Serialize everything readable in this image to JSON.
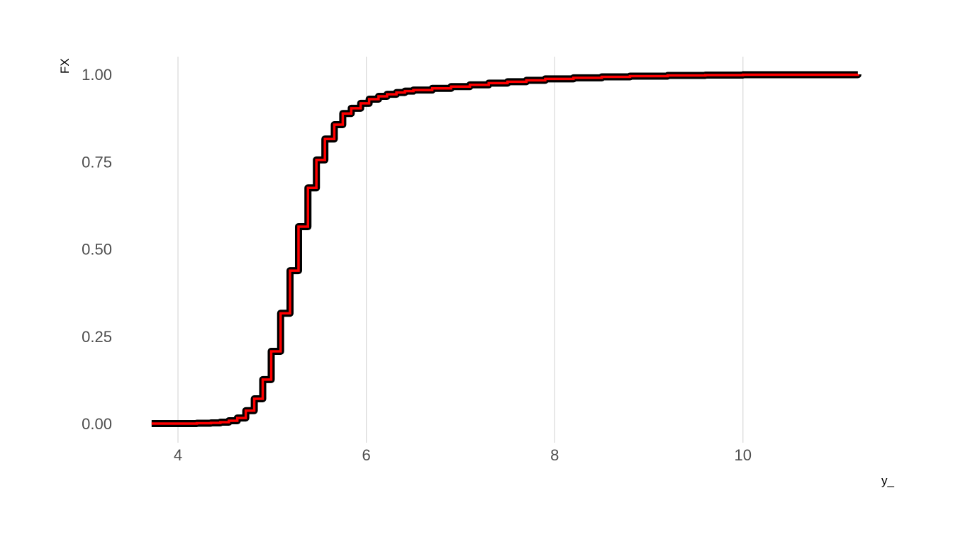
{
  "chart_data": {
    "type": "line",
    "style": "step",
    "title": "",
    "xlabel": "y_",
    "ylabel": "FX",
    "xlim": [
      3.72,
      11.22
    ],
    "ylim": [
      0,
      1
    ],
    "xticks": [
      4,
      6,
      8,
      10
    ],
    "xtick_labels": [
      "4",
      "6",
      "8",
      "10"
    ],
    "yticks": [
      0,
      0.25,
      0.5,
      0.75,
      1
    ],
    "ytick_labels": [
      "0.00",
      "0.25",
      "0.50",
      "0.75",
      "1.00"
    ],
    "grid": "vertical major only",
    "legend": "none",
    "colors": {
      "outer_line": "#000000",
      "inner_line": "#ff0000",
      "grid": "#d9d9d9"
    },
    "x": [
      3.72,
      4.0,
      4.2,
      4.35,
      4.45,
      4.54,
      4.63,
      4.72,
      4.81,
      4.9,
      4.99,
      5.09,
      5.19,
      5.28,
      5.38,
      5.47,
      5.56,
      5.66,
      5.75,
      5.84,
      5.94,
      6.03,
      6.13,
      6.22,
      6.32,
      6.41,
      6.5,
      6.7,
      6.9,
      7.1,
      7.3,
      7.5,
      7.7,
      7.9,
      8.2,
      8.5,
      8.8,
      9.2,
      9.6,
      10.0,
      11.22
    ],
    "y": [
      0,
      0,
      0.001,
      0.002,
      0.004,
      0.008,
      0.016,
      0.037,
      0.071,
      0.126,
      0.207,
      0.316,
      0.438,
      0.564,
      0.675,
      0.755,
      0.815,
      0.856,
      0.888,
      0.903,
      0.917,
      0.929,
      0.937,
      0.943,
      0.948,
      0.952,
      0.955,
      0.96,
      0.965,
      0.97,
      0.975,
      0.979,
      0.983,
      0.987,
      0.99,
      0.993,
      0.995,
      0.997,
      0.998,
      0.999,
      1.0
    ]
  }
}
